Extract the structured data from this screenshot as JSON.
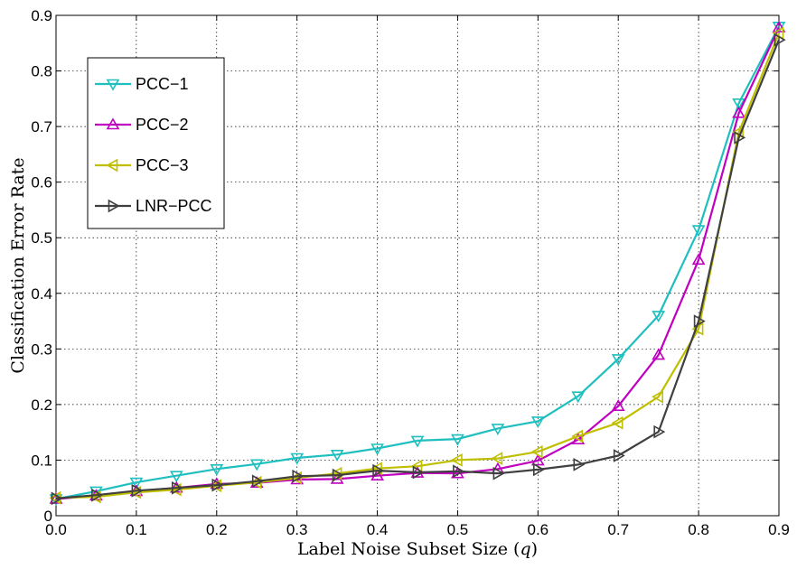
{
  "chart_data": {
    "type": "line",
    "title": "",
    "xlabel": "Label Noise Subset Size (",
    "xlabel_var": "q",
    "xlabel_end": ")",
    "ylabel": "Classification Error Rate",
    "xlim": [
      0,
      0.9
    ],
    "ylim": [
      0,
      0.9
    ],
    "grid": true,
    "legend_position": "top-left",
    "x": [
      0.0,
      0.05,
      0.1,
      0.15,
      0.2,
      0.25,
      0.3,
      0.35,
      0.4,
      0.45,
      0.5,
      0.55,
      0.6,
      0.65,
      0.7,
      0.75,
      0.8,
      0.85,
      0.9
    ],
    "x_ticks": [
      "0.0",
      "0.1",
      "0.2",
      "0.3",
      "0.4",
      "0.5",
      "0.6",
      "0.7",
      "0.8",
      "0.9"
    ],
    "y_ticks": [
      "0",
      "0.1",
      "0.2",
      "0.3",
      "0.4",
      "0.5",
      "0.6",
      "0.7",
      "0.8",
      "0.9"
    ],
    "series": [
      {
        "name": "PCC−1",
        "color": "#1fbfbf",
        "marker": "triangle-down",
        "values": [
          0.03,
          0.044,
          0.06,
          0.072,
          0.084,
          0.093,
          0.104,
          0.11,
          0.121,
          0.135,
          0.138,
          0.157,
          0.17,
          0.215,
          0.282,
          0.36,
          0.514,
          0.742,
          0.88
        ]
      },
      {
        "name": "PCC−2",
        "color": "#bf00bf",
        "marker": "triangle-up",
        "values": [
          0.03,
          0.036,
          0.044,
          0.05,
          0.057,
          0.059,
          0.065,
          0.066,
          0.072,
          0.077,
          0.076,
          0.084,
          0.099,
          0.137,
          0.197,
          0.289,
          0.46,
          0.724,
          0.878
        ]
      },
      {
        "name": "PCC−3",
        "color": "#bfbf00",
        "marker": "triangle-left",
        "values": [
          0.032,
          0.034,
          0.042,
          0.047,
          0.054,
          0.06,
          0.068,
          0.076,
          0.085,
          0.089,
          0.1,
          0.103,
          0.115,
          0.143,
          0.167,
          0.214,
          0.336,
          0.69,
          0.868
        ]
      },
      {
        "name": "LNR−PCC",
        "color": "#404040",
        "marker": "triangle-right",
        "values": [
          0.031,
          0.037,
          0.045,
          0.05,
          0.055,
          0.062,
          0.071,
          0.073,
          0.081,
          0.078,
          0.08,
          0.076,
          0.083,
          0.092,
          0.108,
          0.151,
          0.35,
          0.68,
          0.856
        ]
      }
    ]
  }
}
